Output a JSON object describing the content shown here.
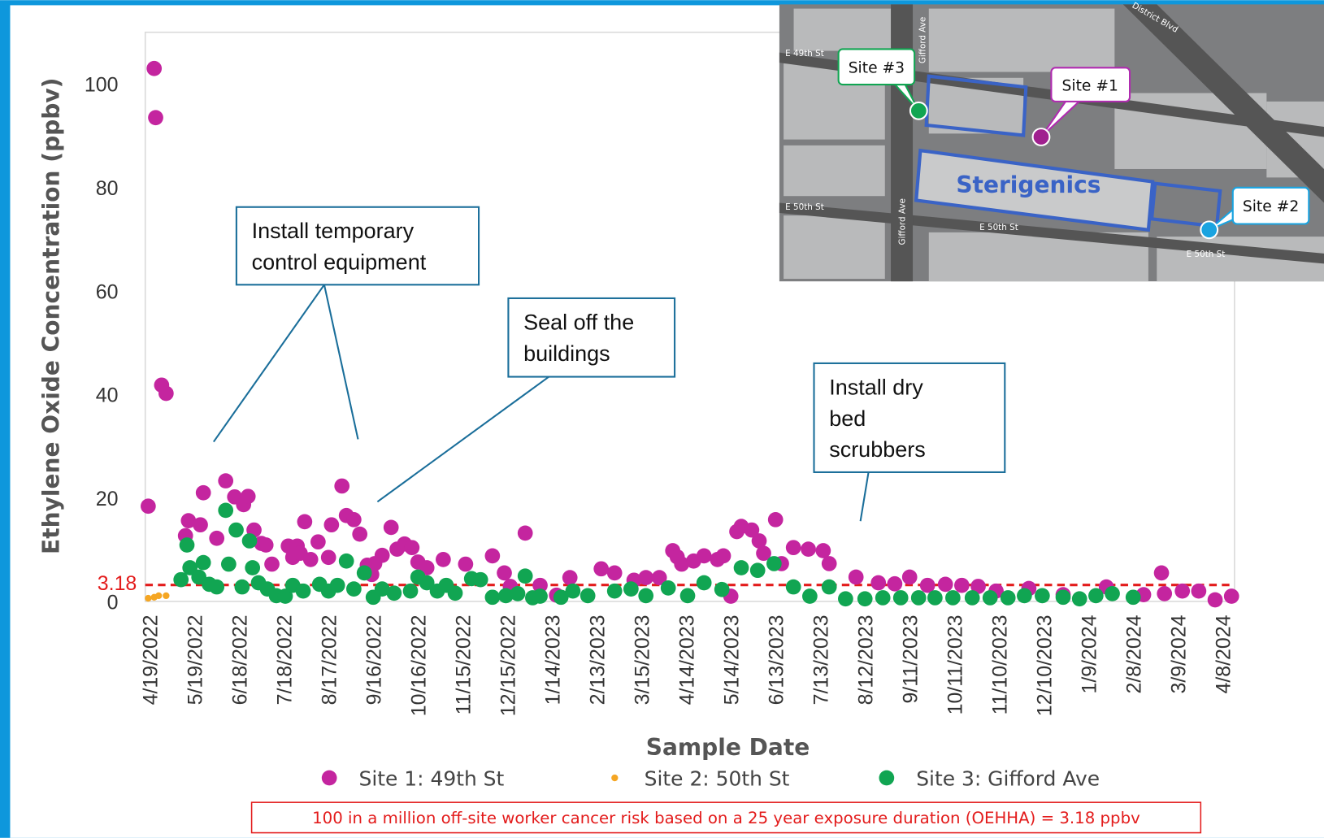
{
  "chart_data": {
    "type": "scatter",
    "xlabel": "Sample Date",
    "ylabel": "Ethylene Oxide Concentration (ppbv)",
    "xlim": [
      "4/16/2022",
      "4/16/2024"
    ],
    "xticks": [
      "4/19/2022",
      "5/19/2022",
      "6/18/2022",
      "7/18/2022",
      "8/17/2022",
      "9/16/2022",
      "10/16/2022",
      "11/15/2022",
      "12/15/2022",
      "1/14/2023",
      "2/13/2023",
      "3/15/2023",
      "4/14/2023",
      "5/14/2023",
      "6/13/2023",
      "7/13/2023",
      "8/12/2023",
      "9/11/2023",
      "10/11/2023",
      "11/10/2023",
      "12/10/2023",
      "1/9/2024",
      "2/8/2024",
      "3/9/2024",
      "4/8/2024"
    ],
    "ylim": [
      0,
      110
    ],
    "yticks": [
      0,
      20,
      40,
      60,
      80,
      100
    ],
    "reference_line": {
      "value": 3.18,
      "color": "#e31b1b"
    },
    "series": [
      {
        "name": "Site 1: 49th St",
        "color": "#c4259f",
        "marker_size": 9,
        "x": [
          "4/18/2022",
          "4/22/2022",
          "4/23/2022",
          "4/27/2022",
          "4/30/2022",
          "5/13/2022",
          "5/15/2022",
          "5/23/2022",
          "5/25/2022",
          "6/3/2022",
          "6/9/2022",
          "6/15/2022",
          "6/21/2022",
          "6/24/2022",
          "6/28/2022",
          "7/3/2022",
          "7/6/2022",
          "7/10/2022",
          "7/21/2022",
          "7/24/2022",
          "7/27/2022",
          "7/29/2022",
          "8/1/2022",
          "8/5/2022",
          "8/10/2022",
          "8/17/2022",
          "8/19/2022",
          "8/26/2022",
          "8/29/2022",
          "9/3/2022",
          "9/7/2022",
          "9/12/2022",
          "9/15/2022",
          "9/17/2022",
          "9/22/2022",
          "9/28/2022",
          "10/2/2022",
          "10/7/2022",
          "10/12/2022",
          "10/16/2022",
          "10/22/2022",
          "11/2/2022",
          "11/17/2022",
          "12/5/2022",
          "12/13/2022",
          "12/17/2022",
          "12/27/2022",
          "1/6/2023",
          "1/17/2023",
          "1/26/2023",
          "2/16/2023",
          "2/25/2023",
          "3/10/2023",
          "3/18/2023",
          "3/27/2023",
          "4/5/2023",
          "4/8/2023",
          "4/11/2023",
          "4/19/2023",
          "4/26/2023",
          "5/5/2023",
          "5/9/2023",
          "5/14/2023",
          "5/18/2023",
          "5/21/2023",
          "5/28/2023",
          "6/2/2023",
          "6/5/2023",
          "6/13/2023",
          "6/17/2023",
          "6/25/2023",
          "7/5/2023",
          "7/15/2023",
          "7/19/2023",
          "8/6/2023",
          "8/21/2023",
          "9/1/2023",
          "9/11/2023",
          "9/23/2023",
          "10/5/2023",
          "10/16/2023",
          "10/27/2023",
          "11/8/2023",
          "11/30/2023",
          "12/23/2023",
          "1/21/2024",
          "2/15/2024",
          "2/27/2024",
          "2/29/2024",
          "3/12/2024",
          "3/23/2024",
          "4/3/2024",
          "4/14/2024"
        ],
        "values": [
          18.4,
          103,
          93.5,
          41.8,
          40.2,
          12.7,
          15.6,
          14.8,
          21,
          12.2,
          23.3,
          20.2,
          18.7,
          20.3,
          13.8,
          11.2,
          10.9,
          7.2,
          10.7,
          8.5,
          10.7,
          9.3,
          15.4,
          8.1,
          11.5,
          8.5,
          14.8,
          22.3,
          16.6,
          15.8,
          13,
          7,
          5.2,
          7.3,
          8.9,
          14.3,
          10.1,
          11.1,
          10.4,
          7.6,
          6.5,
          8.1,
          7.2,
          8.8,
          5.5,
          2.9,
          13.2,
          3.1,
          1.2,
          4.6,
          6.3,
          5.5,
          4.1,
          4.6,
          4.6,
          9.8,
          8.6,
          7.2,
          7.8,
          8.8,
          8.1,
          8.8,
          1,
          13.5,
          14.5,
          13.8,
          11.7,
          9.3,
          15.8,
          7.3,
          10.4,
          10.1,
          9.8,
          7.3,
          4.7,
          3.6,
          3.4,
          4.7,
          3.1,
          3.3,
          3.1,
          2.9,
          2,
          2.5,
          1.3,
          2.8,
          1.3,
          5.5,
          1.5,
          2,
          2,
          0.3,
          1
        ]
      },
      {
        "name": "Site 2: 50th St",
        "color": "#f5a623",
        "marker_size": 4,
        "x": [
          "4/18/2022",
          "4/22/2022",
          "4/25/2022",
          "4/30/2022"
        ],
        "values": [
          0.6,
          0.8,
          1.1,
          1.1
        ]
      },
      {
        "name": "Site 3: Gifford Ave",
        "color": "#11a552",
        "marker_size": 9,
        "x": [
          "5/10/2022",
          "5/14/2022",
          "5/16/2022",
          "5/22/2022",
          "5/25/2022",
          "5/29/2022",
          "6/3/2022",
          "6/9/2022",
          "6/11/2022",
          "6/16/2022",
          "6/20/2022",
          "6/25/2022",
          "6/27/2022",
          "7/1/2022",
          "7/7/2022",
          "7/13/2022",
          "7/19/2022",
          "7/24/2022",
          "7/31/2022",
          "8/11/2022",
          "8/17/2022",
          "8/23/2022",
          "8/29/2022",
          "9/3/2022",
          "9/10/2022",
          "9/16/2022",
          "9/22/2022",
          "9/30/2022",
          "10/11/2022",
          "10/16/2022",
          "10/22/2022",
          "10/29/2022",
          "11/4/2022",
          "11/10/2022",
          "11/21/2022",
          "11/27/2022",
          "12/5/2022",
          "12/14/2022",
          "12/22/2022",
          "12/27/2022",
          "1/1/2023",
          "1/6/2023",
          "1/20/2023",
          "1/28/2023",
          "2/7/2023",
          "2/25/2023",
          "3/8/2023",
          "3/18/2023",
          "4/2/2023",
          "4/15/2023",
          "4/26/2023",
          "5/8/2023",
          "5/21/2023",
          "6/1/2023",
          "6/12/2023",
          "6/25/2023",
          "7/6/2023",
          "7/19/2023",
          "7/30/2023",
          "8/12/2023",
          "8/24/2023",
          "9/5/2023",
          "9/17/2023",
          "9/28/2023",
          "10/10/2023",
          "10/23/2023",
          "11/4/2023",
          "11/16/2023",
          "11/27/2023",
          "12/9/2023",
          "12/23/2023",
          "1/3/2024",
          "1/14/2024",
          "1/25/2024",
          "2/8/2024"
        ],
        "values": [
          4.2,
          10.9,
          6.5,
          4.7,
          7.5,
          3.3,
          2.8,
          17.6,
          7.2,
          13.8,
          2.8,
          11.7,
          6.5,
          3.6,
          2.4,
          1.1,
          1,
          3.1,
          2,
          3.3,
          2,
          3.1,
          7.8,
          2.4,
          5.5,
          0.8,
          2.4,
          1.6,
          2,
          4.7,
          3.6,
          2,
          3.1,
          1.6,
          4.4,
          4.2,
          0.8,
          1.1,
          1.5,
          4.9,
          0.7,
          1,
          0.8,
          2,
          1.1,
          2,
          2.4,
          1.1,
          2.6,
          1.1,
          3.6,
          2.3,
          6.5,
          6,
          7.3,
          2.8,
          1,
          2.8,
          0.5,
          0.5,
          0.7,
          0.7,
          0.7,
          0.7,
          0.7,
          0.7,
          0.7,
          0.7,
          1.1,
          1.1,
          0.8,
          0.5,
          1.1,
          1.5,
          0.8
        ]
      }
    ],
    "annotations": [
      {
        "lines": [
          "Install temporary",
          "control equipment"
        ]
      },
      {
        "lines": [
          "Seal off the",
          "buildings"
        ]
      },
      {
        "lines": [
          "Install dry",
          "bed",
          "scrubbers"
        ]
      }
    ],
    "footnote": "100 in a million off-site worker cancer risk based on a 25 year exposure duration (OEHHA) = 3.18 ppbv"
  },
  "inset_map": {
    "facility": "Sterigenics",
    "sites": [
      "Site #3",
      "Site #1",
      "Site #2"
    ],
    "streets": [
      "E 49th St",
      "E 50th St",
      "E 50th St",
      "E 50th St",
      "Gifford Ave",
      "Gifford Ave",
      "District Blvd"
    ]
  }
}
